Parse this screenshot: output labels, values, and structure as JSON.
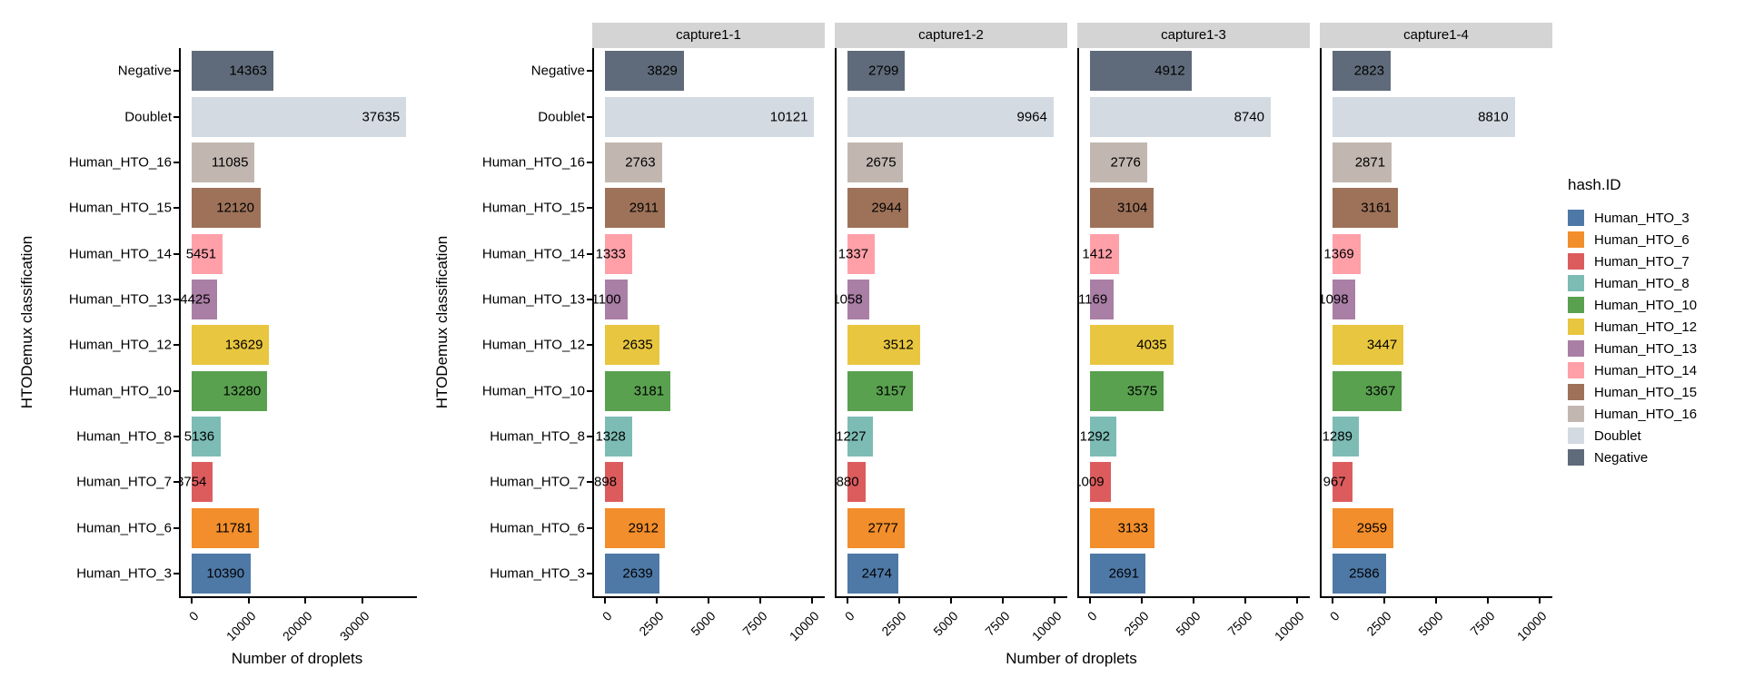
{
  "figure": {
    "x_axis_title": "Number of droplets",
    "y_axis_title": "HTODemux classification",
    "background_color": "#ffffff",
    "axis_color": "#000000",
    "facet_strip_color": "#d4d4d4",
    "palette": {
      "Human_HTO_3": "#4e79a7",
      "Human_HTO_6": "#f28e2b",
      "Human_HTO_7": "#dc5c5e",
      "Human_HTO_8": "#7cbcb5",
      "Human_HTO_10": "#59a14f",
      "Human_HTO_12": "#e8c63f",
      "Human_HTO_13": "#aa7fa6",
      "Human_HTO_14": "#ffa0a9",
      "Human_HTO_15": "#9e7259",
      "Human_HTO_16": "#c2b7b0",
      "Doublet": "#d3dae2",
      "Negative": "#5f6b7a"
    }
  },
  "legend": {
    "title": "hash.ID",
    "entries": [
      {
        "label": "Human_HTO_3",
        "color": "#4e79a7"
      },
      {
        "label": "Human_HTO_6",
        "color": "#f28e2b"
      },
      {
        "label": "Human_HTO_7",
        "color": "#dc5c5e"
      },
      {
        "label": "Human_HTO_8",
        "color": "#7cbcb5"
      },
      {
        "label": "Human_HTO_10",
        "color": "#59a14f"
      },
      {
        "label": "Human_HTO_12",
        "color": "#e8c63f"
      },
      {
        "label": "Human_HTO_13",
        "color": "#aa7fa6"
      },
      {
        "label": "Human_HTO_14",
        "color": "#ffa0a9"
      },
      {
        "label": "Human_HTO_15",
        "color": "#9e7259"
      },
      {
        "label": "Human_HTO_16",
        "color": "#c2b7b0"
      },
      {
        "label": "Doublet",
        "color": "#d3dae2"
      },
      {
        "label": "Negative",
        "color": "#5f6b7a"
      }
    ]
  },
  "chart_data": [
    {
      "type": "bar",
      "orientation": "horizontal",
      "title": "",
      "facet": null,
      "categories": [
        "Negative",
        "Doublet",
        "Human_HTO_16",
        "Human_HTO_15",
        "Human_HTO_14",
        "Human_HTO_13",
        "Human_HTO_12",
        "Human_HTO_10",
        "Human_HTO_8",
        "Human_HTO_7",
        "Human_HTO_6",
        "Human_HTO_3"
      ],
      "values": [
        14363,
        37635,
        11085,
        12120,
        5451,
        4425,
        13629,
        13280,
        5136,
        3754,
        11781,
        10390
      ],
      "xlabel": "Number of droplets",
      "ylabel": "HTODemux classification",
      "xlim": [
        0,
        37635
      ],
      "xticks": [
        0,
        10000,
        20000,
        30000
      ],
      "bar_value_labels": true,
      "legend_position": "right",
      "grid": false
    },
    {
      "type": "bar",
      "orientation": "horizontal",
      "facet": "capture1-1",
      "categories": [
        "Negative",
        "Doublet",
        "Human_HTO_16",
        "Human_HTO_15",
        "Human_HTO_14",
        "Human_HTO_13",
        "Human_HTO_12",
        "Human_HTO_10",
        "Human_HTO_8",
        "Human_HTO_7",
        "Human_HTO_6",
        "Human_HTO_3"
      ],
      "values": [
        3829,
        10121,
        2763,
        2911,
        1333,
        1100,
        2635,
        3181,
        1328,
        898,
        2912,
        2639
      ],
      "xlabel": "Number of droplets",
      "ylabel": "HTODemux classification",
      "xlim": [
        0,
        10121
      ],
      "xticks": [
        0,
        2500,
        5000,
        7500,
        10000
      ],
      "bar_value_labels": true,
      "grid": false
    },
    {
      "type": "bar",
      "orientation": "horizontal",
      "facet": "capture1-2",
      "categories": [
        "Negative",
        "Doublet",
        "Human_HTO_16",
        "Human_HTO_15",
        "Human_HTO_14",
        "Human_HTO_13",
        "Human_HTO_12",
        "Human_HTO_10",
        "Human_HTO_8",
        "Human_HTO_7",
        "Human_HTO_6",
        "Human_HTO_3"
      ],
      "values": [
        2799,
        9964,
        2675,
        2944,
        1337,
        1058,
        3512,
        3157,
        1227,
        880,
        2777,
        2474
      ],
      "xlabel": "Number of droplets",
      "ylabel": "HTODemux classification",
      "xlim": [
        0,
        10121
      ],
      "xticks": [
        0,
        2500,
        5000,
        7500,
        10000
      ],
      "bar_value_labels": true,
      "grid": false
    },
    {
      "type": "bar",
      "orientation": "horizontal",
      "facet": "capture1-3",
      "categories": [
        "Negative",
        "Doublet",
        "Human_HTO_16",
        "Human_HTO_15",
        "Human_HTO_14",
        "Human_HTO_13",
        "Human_HTO_12",
        "Human_HTO_10",
        "Human_HTO_8",
        "Human_HTO_7",
        "Human_HTO_6",
        "Human_HTO_3"
      ],
      "values": [
        4912,
        8740,
        2776,
        3104,
        1412,
        1169,
        4035,
        3575,
        1292,
        1009,
        3133,
        2691
      ],
      "xlabel": "Number of droplets",
      "ylabel": "HTODemux classification",
      "xlim": [
        0,
        10121
      ],
      "xticks": [
        0,
        2500,
        5000,
        7500,
        10000
      ],
      "bar_value_labels": true,
      "grid": false
    },
    {
      "type": "bar",
      "orientation": "horizontal",
      "facet": "capture1-4",
      "categories": [
        "Negative",
        "Doublet",
        "Human_HTO_16",
        "Human_HTO_15",
        "Human_HTO_14",
        "Human_HTO_13",
        "Human_HTO_12",
        "Human_HTO_10",
        "Human_HTO_8",
        "Human_HTO_7",
        "Human_HTO_6",
        "Human_HTO_3"
      ],
      "values": [
        2823,
        8810,
        2871,
        3161,
        1369,
        1098,
        3447,
        3367,
        1289,
        967,
        2959,
        2586
      ],
      "xlabel": "Number of droplets",
      "ylabel": "HTODemux classification",
      "xlim": [
        0,
        10121
      ],
      "xticks": [
        0,
        2500,
        5000,
        7500,
        10000
      ],
      "bar_value_labels": true,
      "grid": false
    }
  ]
}
